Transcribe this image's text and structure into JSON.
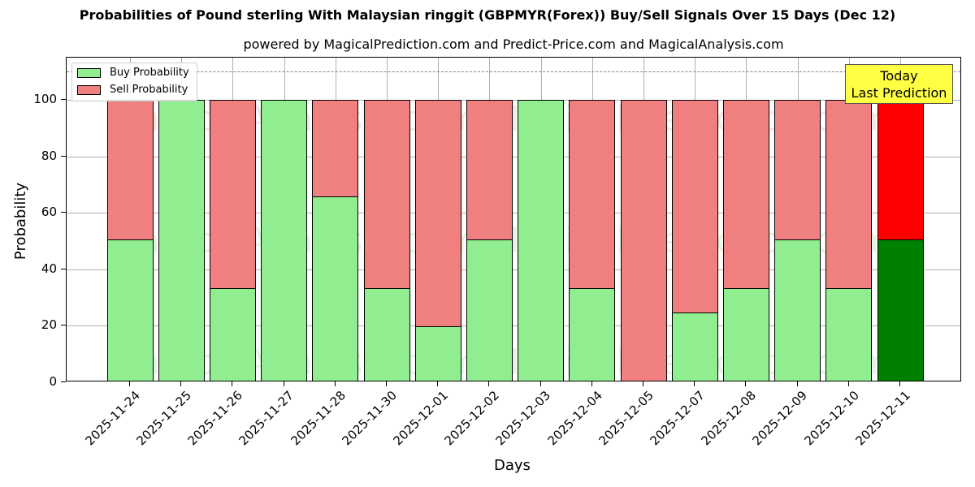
{
  "header": {
    "title": "Probabilities of Pound sterling With Malaysian ringgit (GBPMYR(Forex)) Buy/Sell Signals Over 15 Days (Dec 12)",
    "subtitle": "powered by MagicalPrediction.com and Predict-Price.com and MagicalAnalysis.com"
  },
  "legend": {
    "buy_label": "Buy Probability",
    "sell_label": "Sell Probability"
  },
  "annotation": {
    "line1": "Today",
    "line2": "Last Prediction"
  },
  "watermarks": [
    "MagicalAnalysis.com",
    "MagicalPrediction.com"
  ],
  "colors": {
    "buy": "#90ee90",
    "sell": "#f08080",
    "today_buy": "#008000",
    "today_sell": "#ff0000",
    "annotation_bg": "#ffff44"
  },
  "chart_data": {
    "type": "bar",
    "stacked": true,
    "title": "Probabilities of Pound sterling With Malaysian ringgit (GBPMYR(Forex)) Buy/Sell Signals Over 15 Days (Dec 12)",
    "subtitle": "powered by MagicalPrediction.com and Predict-Price.com and MagicalAnalysis.com",
    "xlabel": "Days",
    "ylabel": "Probability",
    "ylim": [
      0,
      115
    ],
    "yticks": [
      0,
      20,
      40,
      60,
      80,
      100
    ],
    "grid": true,
    "legend_position": "upper left",
    "reference_line": {
      "y": 110,
      "style": "dashed",
      "color": "#808080"
    },
    "categories": [
      "2025-11-24",
      "2025-11-25",
      "2025-11-26",
      "2025-11-27",
      "2025-11-28",
      "2025-11-30",
      "2025-12-01",
      "2025-12-02",
      "2025-12-03",
      "2025-12-04",
      "2025-12-05",
      "2025-12-07",
      "2025-12-08",
      "2025-12-09",
      "2025-12-10",
      "2025-12-11"
    ],
    "series": [
      {
        "name": "Buy Probability",
        "values": [
          50.6,
          100,
          33.3,
          100,
          65.9,
          33.3,
          19.7,
          50.6,
          100,
          33.3,
          0,
          24.6,
          33.3,
          50.6,
          33.3,
          50.6
        ]
      },
      {
        "name": "Sell Probability",
        "values": [
          49.4,
          0,
          66.7,
          0,
          34.1,
          66.7,
          80.3,
          49.4,
          0,
          66.7,
          100,
          75.4,
          66.7,
          49.4,
          66.7,
          49.4
        ]
      }
    ],
    "annotations": [
      "Today Last Prediction"
    ]
  }
}
